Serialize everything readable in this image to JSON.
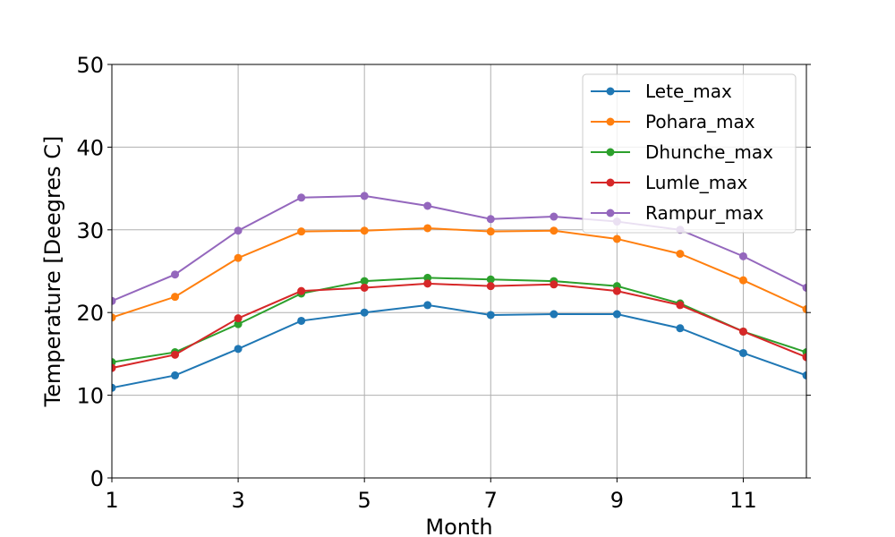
{
  "chart_data": {
    "type": "line",
    "title": "",
    "xlabel": "Month",
    "ylabel": "Temperature [Deegres C]",
    "xlim": [
      1,
      12
    ],
    "ylim": [
      0,
      50
    ],
    "xticks": [
      1,
      3,
      5,
      7,
      9,
      11
    ],
    "yticks": [
      0,
      10,
      20,
      30,
      40,
      50
    ],
    "grid": true,
    "legend_position": "top-right",
    "x": [
      1,
      2,
      3,
      4,
      5,
      6,
      7,
      8,
      9,
      10,
      11,
      12
    ],
    "series": [
      {
        "name": "Lete_max",
        "color": "#1f77b4",
        "values": [
          10.9,
          12.4,
          15.6,
          19.0,
          20.0,
          20.9,
          19.7,
          19.8,
          19.8,
          18.1,
          15.1,
          12.4
        ]
      },
      {
        "name": "Pohara_max",
        "color": "#ff7f0e",
        "values": [
          19.4,
          21.9,
          26.6,
          29.8,
          29.9,
          30.2,
          29.8,
          29.9,
          28.9,
          27.1,
          23.9,
          20.4
        ]
      },
      {
        "name": "Dhunche_max",
        "color": "#2ca02c",
        "values": [
          14.0,
          15.2,
          18.6,
          22.3,
          23.8,
          24.2,
          24.0,
          23.8,
          23.2,
          21.1,
          17.7,
          15.2
        ]
      },
      {
        "name": "Lumle_max",
        "color": "#d62728",
        "values": [
          13.3,
          14.9,
          19.3,
          22.6,
          23.0,
          23.5,
          23.2,
          23.4,
          22.6,
          20.9,
          17.7,
          14.6
        ]
      },
      {
        "name": "Rampur_max",
        "color": "#9467bd",
        "values": [
          21.4,
          24.6,
          29.9,
          33.9,
          34.1,
          32.9,
          31.3,
          31.6,
          31.0,
          30.0,
          26.8,
          23.0
        ]
      }
    ]
  }
}
